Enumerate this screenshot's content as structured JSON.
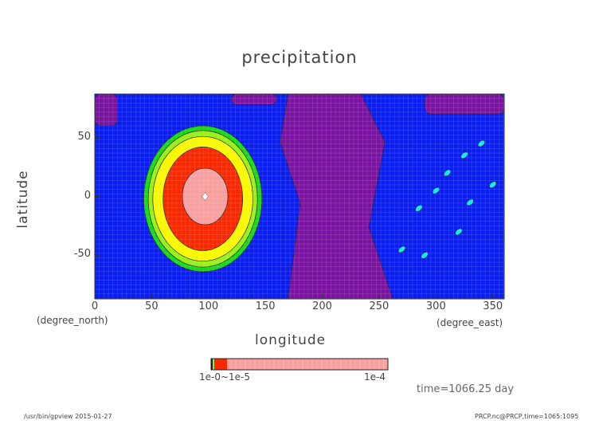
{
  "chart_data": {
    "type": "heatmap",
    "title": "precipitation",
    "xlabel": "longitude",
    "ylabel": "latitude",
    "x_unit": "(degree_east)",
    "y_unit": "(degree_north)",
    "xlim": [
      0,
      360
    ],
    "ylim": [
      -87,
      87
    ],
    "x_ticks": [
      "0",
      "50",
      "100",
      "150",
      "200",
      "250",
      "300",
      "350"
    ],
    "y_ticks": [
      "50",
      "0",
      "-50"
    ],
    "grid": false,
    "background_color": "#0a1ef0",
    "level_colors": [
      "#7a14a0",
      "#0a1ef0",
      "#12e8e8",
      "#18d818",
      "#98f018",
      "#f8f800",
      "#f82800",
      "#f8a0a0"
    ],
    "regions": [
      {
        "kind": "low",
        "color": "#7a14a0",
        "lon": [
          170,
          255
        ],
        "lat": [
          -87,
          87
        ],
        "note": ""
      },
      {
        "kind": "ring",
        "color": "#18d818",
        "center": [
          95,
          -2
        ],
        "radius": [
          52,
          62
        ]
      },
      {
        "kind": "ring",
        "color": "#98f018",
        "center": [
          95,
          -2
        ],
        "radius": [
          48,
          58
        ]
      },
      {
        "kind": "ring",
        "color": "#f8f800",
        "center": [
          95,
          -2
        ],
        "radius": [
          44,
          53
        ]
      },
      {
        "kind": "ring",
        "color": "#f82800",
        "center": [
          95,
          -2
        ],
        "radius": [
          35,
          44
        ]
      },
      {
        "kind": "ring",
        "color": "#f8a0a0",
        "center": [
          97,
          0
        ],
        "radius": [
          20,
          24
        ]
      }
    ],
    "colorbar": {
      "labels_low": "1e-0 ... 1e-5 (overlapping)",
      "label_high": "1e-4"
    }
  },
  "colorbar": {
    "low_label": "1e-0~1e-5",
    "high_label": "1e-4"
  },
  "annotations": {
    "time": "time=1066.25 day"
  },
  "footer": {
    "left": "/usr/bin/gpview  2015-01-27",
    "right": "PRCP.nc@PRCP,time=1065:1095"
  }
}
